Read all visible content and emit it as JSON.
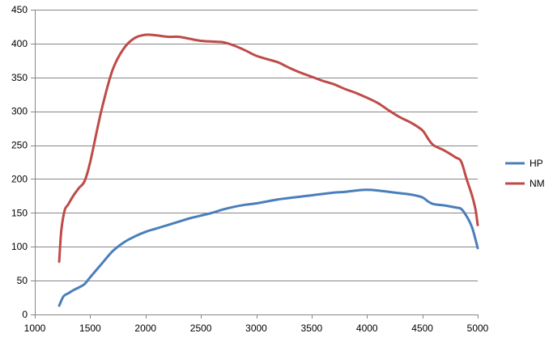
{
  "chart_data": {
    "type": "line",
    "title": "",
    "xlabel": "",
    "ylabel": "",
    "xlim": [
      1000,
      5000
    ],
    "ylim": [
      0,
      450
    ],
    "x_ticks": [
      1000,
      1500,
      2000,
      2500,
      3000,
      3500,
      4000,
      4500,
      5000
    ],
    "y_ticks": [
      0,
      50,
      100,
      150,
      200,
      250,
      300,
      350,
      400,
      450
    ],
    "grid": "horizontal",
    "legend_position": "right",
    "series": [
      {
        "name": "HP",
        "color": "#4a7ebb",
        "points": [
          [
            1220,
            13
          ],
          [
            1260,
            27
          ],
          [
            1300,
            31
          ],
          [
            1350,
            36
          ],
          [
            1400,
            40
          ],
          [
            1450,
            45
          ],
          [
            1500,
            55
          ],
          [
            1600,
            74
          ],
          [
            1700,
            93
          ],
          [
            1800,
            106
          ],
          [
            1900,
            115
          ],
          [
            2000,
            122
          ],
          [
            2100,
            127
          ],
          [
            2200,
            132
          ],
          [
            2300,
            137
          ],
          [
            2400,
            142
          ],
          [
            2500,
            146
          ],
          [
            2600,
            150
          ],
          [
            2700,
            155
          ],
          [
            2800,
            159
          ],
          [
            2900,
            162
          ],
          [
            3000,
            164
          ],
          [
            3100,
            167
          ],
          [
            3200,
            170
          ],
          [
            3300,
            172
          ],
          [
            3400,
            174
          ],
          [
            3500,
            176
          ],
          [
            3600,
            178
          ],
          [
            3700,
            180
          ],
          [
            3800,
            181
          ],
          [
            3900,
            183
          ],
          [
            4000,
            184
          ],
          [
            4100,
            183
          ],
          [
            4200,
            181
          ],
          [
            4300,
            179
          ],
          [
            4400,
            177
          ],
          [
            4500,
            173
          ],
          [
            4550,
            167
          ],
          [
            4600,
            163
          ],
          [
            4700,
            161
          ],
          [
            4800,
            158
          ],
          [
            4850,
            156
          ],
          [
            4900,
            145
          ],
          [
            4950,
            128
          ],
          [
            5000,
            98
          ]
        ]
      },
      {
        "name": "NM",
        "color": "#be4b48",
        "points": [
          [
            1220,
            78
          ],
          [
            1240,
            125
          ],
          [
            1270,
            154
          ],
          [
            1300,
            162
          ],
          [
            1350,
            176
          ],
          [
            1400,
            187
          ],
          [
            1450,
            197
          ],
          [
            1500,
            225
          ],
          [
            1600,
            300
          ],
          [
            1700,
            360
          ],
          [
            1800,
            392
          ],
          [
            1900,
            408
          ],
          [
            2000,
            413
          ],
          [
            2100,
            412
          ],
          [
            2200,
            410
          ],
          [
            2300,
            410
          ],
          [
            2400,
            407
          ],
          [
            2500,
            404
          ],
          [
            2600,
            403
          ],
          [
            2700,
            402
          ],
          [
            2800,
            397
          ],
          [
            2900,
            390
          ],
          [
            3000,
            382
          ],
          [
            3100,
            377
          ],
          [
            3200,
            372
          ],
          [
            3300,
            364
          ],
          [
            3400,
            357
          ],
          [
            3500,
            351
          ],
          [
            3600,
            345
          ],
          [
            3700,
            340
          ],
          [
            3800,
            333
          ],
          [
            3900,
            327
          ],
          [
            4000,
            320
          ],
          [
            4100,
            312
          ],
          [
            4200,
            301
          ],
          [
            4300,
            291
          ],
          [
            4400,
            283
          ],
          [
            4500,
            272
          ],
          [
            4550,
            260
          ],
          [
            4600,
            250
          ],
          [
            4700,
            242
          ],
          [
            4800,
            232
          ],
          [
            4850,
            226
          ],
          [
            4900,
            200
          ],
          [
            4950,
            175
          ],
          [
            4980,
            155
          ],
          [
            5000,
            132
          ]
        ]
      }
    ]
  }
}
